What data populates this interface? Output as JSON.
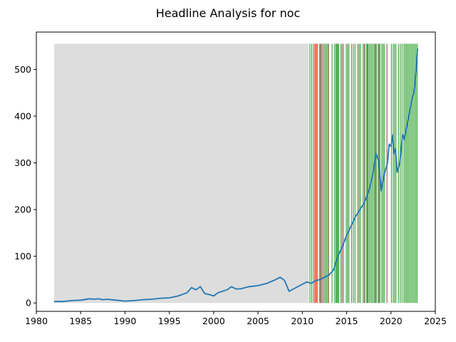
{
  "chart_data": {
    "type": "line",
    "title": "Headline Analysis for noc",
    "xlabel": "",
    "ylabel": "",
    "xlim": [
      1980,
      2025
    ],
    "ylim": [
      -18,
      580
    ],
    "x_ticks": [
      1980,
      1985,
      1990,
      1995,
      2000,
      2005,
      2010,
      2015,
      2020,
      2025
    ],
    "y_ticks": [
      0,
      100,
      200,
      300,
      400,
      500
    ],
    "grid": false,
    "legend": "none",
    "colors": {
      "line": "#1f77b4",
      "neutral_band": "#dddddd",
      "positive_band": "#2ca02c",
      "negative_band": "#ff4c3b",
      "mixed_band": "#8c564b"
    },
    "background_band": {
      "x_start": 1982.0,
      "x_end": 2010.7,
      "y_top": 555,
      "category": "neutral"
    },
    "headline_bands": {
      "y_top": 555,
      "width_years": 0.1,
      "positive": [
        2010.8,
        2011.0,
        2011.2,
        2011.9,
        2012.1,
        2012.4,
        2012.7,
        2012.9,
        2013.3,
        2013.6,
        2013.75,
        2013.85,
        2013.95,
        2014.05,
        2014.3,
        2014.6,
        2014.9,
        2015.2,
        2015.5,
        2015.9,
        2016.2,
        2016.5,
        2016.8,
        2017.0,
        2017.2,
        2017.35,
        2017.5,
        2017.65,
        2017.8,
        2017.95,
        2018.1,
        2018.3,
        2018.5,
        2018.7,
        2018.9,
        2019.05,
        2019.2,
        2020.0,
        2020.2,
        2020.35,
        2020.5,
        2020.8,
        2021.0,
        2021.2,
        2021.4,
        2021.55,
        2021.7,
        2021.85,
        2022.0,
        2022.15,
        2022.3,
        2022.45,
        2022.6,
        2022.75,
        2022.9
      ],
      "negative": [
        2011.35,
        2011.45,
        2011.55,
        2011.65
      ],
      "mixed": [
        2012.0,
        2012.25,
        2012.55,
        2012.85,
        2014.45,
        2015.05,
        2015.7,
        2016.35,
        2016.95,
        2017.3,
        2018.2,
        2018.6,
        2019.5
      ]
    },
    "series": [
      {
        "x": [
          1982.0,
          1983.0,
          1984.0,
          1985.0,
          1986.0,
          1986.5,
          1987.0,
          1987.5,
          1988.0,
          1989.0,
          1990.0,
          1991.0,
          1992.0,
          1993.0,
          1994.0,
          1995.0,
          1996.0,
          1997.0,
          1997.5,
          1998.0,
          1998.5,
          1999.0,
          1999.5,
          2000.0,
          2000.5,
          2001.0,
          2001.5,
          2002.0,
          2002.5,
          2003.0,
          2004.0,
          2005.0,
          2006.0,
          2007.0,
          2007.5,
          2008.0,
          2008.5,
          2009.0,
          2009.5,
          2010.0,
          2010.5,
          2011.0,
          2011.5,
          2012.0,
          2012.5,
          2013.0,
          2013.5,
          2014.0,
          2014.5,
          2015.0,
          2015.5,
          2016.0,
          2016.5,
          2017.0,
          2017.5,
          2018.0,
          2018.3,
          2018.6,
          2018.9,
          2019.0,
          2019.3,
          2019.6,
          2019.8,
          2020.0,
          2020.2,
          2020.3,
          2020.5,
          2020.7,
          2021.0,
          2021.3,
          2021.5,
          2021.8,
          2022.0,
          2022.2,
          2022.4,
          2022.6,
          2022.8,
          2023.0
        ],
        "values": [
          3,
          3,
          5,
          6,
          9,
          8,
          9,
          7,
          8,
          6,
          4,
          5,
          7,
          8,
          10,
          11,
          15,
          22,
          33,
          28,
          35,
          20,
          18,
          15,
          22,
          25,
          28,
          35,
          30,
          30,
          35,
          37,
          42,
          50,
          55,
          48,
          25,
          30,
          35,
          40,
          45,
          42,
          48,
          50,
          55,
          60,
          70,
          100,
          120,
          145,
          165,
          185,
          200,
          215,
          240,
          280,
          320,
          305,
          240,
          250,
          280,
          300,
          340,
          335,
          360,
          320,
          330,
          280,
          300,
          360,
          350,
          380,
          400,
          420,
          440,
          450,
          490,
          545
        ]
      }
    ]
  }
}
